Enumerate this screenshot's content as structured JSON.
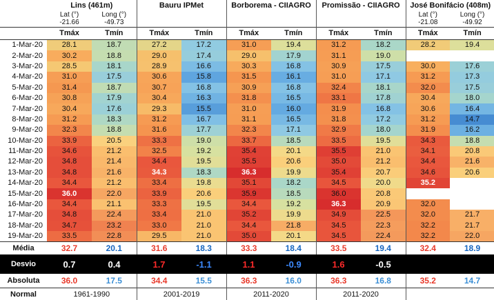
{
  "stations": [
    {
      "name": "Lins (461m)",
      "lat_label": "Lat (°)",
      "long_label": "Long (°)",
      "lat": "-21.66",
      "long": "-49.73"
    },
    {
      "name": "Bauru IPMet",
      "lat_label": "",
      "long_label": "",
      "lat": "",
      "long": ""
    },
    {
      "name": "Borborema - CIIAGRO",
      "lat_label": "",
      "long_label": "",
      "lat": "",
      "long": ""
    },
    {
      "name": "Promissão - CIIAGRO",
      "lat_label": "",
      "long_label": "",
      "lat": "",
      "long": ""
    },
    {
      "name": "José Bonifácio (408m)",
      "lat_label": "Lat (°)",
      "long_label": "Long (°)",
      "lat": "-21.08",
      "long": "-49.92"
    }
  ],
  "col_headers": {
    "tmax": "Tmáx",
    "tmin": "Tmín"
  },
  "dates": [
    "1-Mar-20",
    "2-Mar-20",
    "3-Mar-20",
    "4-Mar-20",
    "5-Mar-20",
    "6-Mar-20",
    "7-Mar-20",
    "8-Mar-20",
    "9-Mar-20",
    "10-Mar-20",
    "11-Mar-20",
    "12-Mar-20",
    "13-Mar-20",
    "14-Mar-20",
    "15-Mar-20",
    "16-Mar-20",
    "17-Mar-20",
    "18-Mar-20",
    "19-Mar-20"
  ],
  "values": [
    [
      "28.1",
      "18.7",
      "27.2",
      "17.2",
      "31.0",
      "19.4",
      "31.2",
      "18.2",
      "28.2",
      "19.4"
    ],
    [
      "30.2",
      "18.8",
      "29.0",
      "17.4",
      "29.0",
      "17.9",
      "31.1",
      "19.0",
      "",
      ""
    ],
    [
      "28.5",
      "18.1",
      "28.9",
      "16.6",
      "30.3",
      "16.8",
      "30.9",
      "17.5",
      "30.0",
      "17.6"
    ],
    [
      "31.0",
      "17.5",
      "30.6",
      "15.8",
      "31.5",
      "16.1",
      "31.0",
      "17.1",
      "31.2",
      "17.3"
    ],
    [
      "31.4",
      "18.7",
      "30.7",
      "16.8",
      "30.9",
      "16.8",
      "32.4",
      "18.1",
      "32.0",
      "17.5"
    ],
    [
      "30.8",
      "17.9",
      "30.4",
      "16.3",
      "31.8",
      "16.5",
      "33.1",
      "17.8",
      "30.4",
      "18.0"
    ],
    [
      "30.4",
      "17.6",
      "29.3",
      "15.5",
      "31.0",
      "16.0",
      "31.9",
      "16.8",
      "30.6",
      "16.4"
    ],
    [
      "31.2",
      "18.3",
      "31.2",
      "16.7",
      "31.1",
      "16.5",
      "31.8",
      "17.2",
      "31.2",
      "14.7"
    ],
    [
      "32.3",
      "18.8",
      "31.6",
      "17.7",
      "32.3",
      "17.1",
      "32.9",
      "18.0",
      "31.9",
      "16.2"
    ],
    [
      "33.9",
      "20.5",
      "33.3",
      "19.0",
      "33.7",
      "18.5",
      "33.5",
      "19.5",
      "34.3",
      "18.8"
    ],
    [
      "34.6",
      "21.2",
      "32.5",
      "19.2",
      "35.4",
      "20.1",
      "35.5",
      "21.0",
      "34.1",
      "20.8"
    ],
    [
      "34.8",
      "21.4",
      "34.4",
      "19.5",
      "35.5",
      "20.6",
      "35.0",
      "21.2",
      "34.4",
      "21.6"
    ],
    [
      "34.8",
      "21.6",
      "34.3",
      "18.3",
      "36.3",
      "19.9",
      "35.4",
      "20.7",
      "34.6",
      "20.6"
    ],
    [
      "34.4",
      "21.2",
      "33.4",
      "19.8",
      "35.1",
      "18.2",
      "34.5",
      "20.0",
      "35.2",
      ""
    ],
    [
      "36.0",
      "22.0",
      "33.9",
      "20.6",
      "35.9",
      "18.5",
      "36.0",
      "20.8",
      "",
      ""
    ],
    [
      "34.4",
      "21.1",
      "33.3",
      "19.5",
      "34.4",
      "19.2",
      "36.3",
      "20.9",
      "32.0",
      ""
    ],
    [
      "34.8",
      "22.4",
      "33.4",
      "21.0",
      "35.2",
      "19.9",
      "34.9",
      "22.5",
      "32.0",
      "21.7"
    ],
    [
      "34.7",
      "23.2",
      "33.0",
      "21.0",
      "34.4",
      "21.8",
      "34.5",
      "22.3",
      "32.2",
      "21.7"
    ],
    [
      "33.5",
      "22.8",
      "29.5",
      "21.0",
      "35.0",
      "20.1",
      "34.5",
      "22.4",
      "32.2",
      "22.0"
    ]
  ],
  "summary": {
    "media_label": "Média",
    "media": [
      "32.7",
      "20.1",
      "31.6",
      "18.3",
      "33.3",
      "18.4",
      "33.5",
      "19.4",
      "32.4",
      "18.9"
    ],
    "desvio_label": "Desvio",
    "desvio": [
      "0.7",
      "0.4",
      "1.7",
      "-1.1",
      "1.1",
      "-0.9",
      "1.6",
      "-0.5",
      "",
      ""
    ],
    "absoluta_label": "Absoluta",
    "absoluta": [
      "36.0",
      "17.5",
      "34.4",
      "15.5",
      "36.3",
      "16.0",
      "36.3",
      "16.8",
      "35.2",
      "14.7"
    ],
    "normal_label": "Normal",
    "normal": [
      "1961-1990",
      "2001-2019",
      "2011-2020",
      "2011-2020",
      ""
    ]
  },
  "colors": {
    "max_red": "#e8392a",
    "min_blue": "#1565c0",
    "desvio_red": "#ff2a2a",
    "desvio_blue": "#3d8bff",
    "absoluta_red": "#e8392a",
    "absoluta_blue": "#3b8fd6"
  }
}
